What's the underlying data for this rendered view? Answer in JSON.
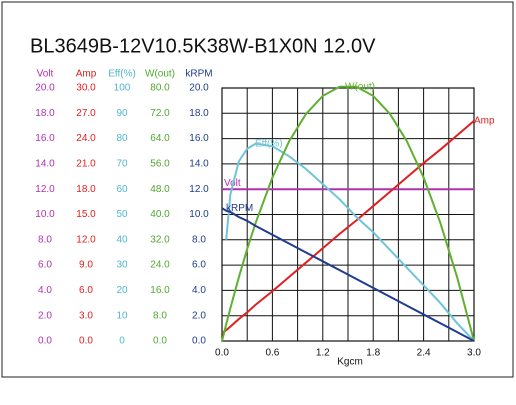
{
  "chart_data": {
    "type": "line",
    "title": "BL3649B-12V10.5K38W-B1X0N  12.0V",
    "xlabel": "Kgcm",
    "x": [
      0,
      0.05,
      0.1,
      0.2,
      0.3,
      0.4,
      0.6,
      0.8,
      1.0,
      1.2,
      1.4,
      1.6,
      1.8,
      2.0,
      2.2,
      2.4,
      2.6,
      2.8,
      3.0
    ],
    "xlim": [
      0,
      3
    ],
    "xticks": [
      {
        "value": 0,
        "label": "0.0"
      },
      {
        "value": 0.6,
        "label": "0.6"
      },
      {
        "value": 1.2,
        "label": "1.2"
      },
      {
        "value": 1.8,
        "label": "1.8"
      },
      {
        "value": 2.4,
        "label": "2.4"
      },
      {
        "value": 3.0,
        "label": "3.0"
      }
    ],
    "xminor": [
      0.3,
      0.9,
      1.5,
      2.1,
      2.7
    ],
    "grid": true,
    "axes": [
      {
        "name": "Volt",
        "color": "#b030b0",
        "ylim": [
          0,
          20
        ],
        "yticks": [
          {
            "value": 0,
            "label": "0.0"
          },
          {
            "value": 2,
            "label": "2.0"
          },
          {
            "value": 4,
            "label": "4.0"
          },
          {
            "value": 6,
            "label": "6.0"
          },
          {
            "value": 8,
            "label": "8.0"
          },
          {
            "value": 10,
            "label": "10.0"
          },
          {
            "value": 12,
            "label": "12.0"
          },
          {
            "value": 14,
            "label": "14.0"
          },
          {
            "value": 16,
            "label": "16.0"
          },
          {
            "value": 18,
            "label": "18.0"
          },
          {
            "value": 20,
            "label": "20.0"
          }
        ]
      },
      {
        "name": "Amp",
        "color": "#e02020",
        "ylim": [
          0,
          30
        ],
        "yticks": [
          {
            "value": 0,
            "label": "0.0"
          },
          {
            "value": 3,
            "label": "3.0"
          },
          {
            "value": 6,
            "label": "6.0"
          },
          {
            "value": 9,
            "label": "9.0"
          },
          {
            "value": 12,
            "label": "12.0"
          },
          {
            "value": 15,
            "label": "15.0"
          },
          {
            "value": 18,
            "label": "18.0"
          },
          {
            "value": 21,
            "label": "21.0"
          },
          {
            "value": 24,
            "label": "24.0"
          },
          {
            "value": 27,
            "label": "27.0"
          },
          {
            "value": 30,
            "label": "30.0"
          }
        ]
      },
      {
        "name": "Eff(%)",
        "color": "#50b8d0",
        "ylim": [
          0,
          100
        ],
        "yticks": [
          0,
          10,
          20,
          30,
          40,
          50,
          60,
          70,
          80,
          90,
          100
        ]
      },
      {
        "name": "W(out)",
        "color": "#50a830",
        "ylim": [
          0,
          80
        ],
        "yticks": [
          {
            "value": 0,
            "label": "0.0"
          },
          {
            "value": 8,
            "label": "8.0"
          },
          {
            "value": 16,
            "label": "16.0"
          },
          {
            "value": 24,
            "label": "24.0"
          },
          {
            "value": 32,
            "label": "32.0"
          },
          {
            "value": 40,
            "label": "40.0"
          },
          {
            "value": 48,
            "label": "48.0"
          },
          {
            "value": 56,
            "label": "56.0"
          },
          {
            "value": 64,
            "label": "64.0"
          },
          {
            "value": 72,
            "label": "72.0"
          },
          {
            "value": 80,
            "label": "80.0"
          }
        ]
      },
      {
        "name": "kRPM",
        "color": "#203c90",
        "ylim": [
          0,
          20
        ],
        "yticks": [
          {
            "value": 0,
            "label": "0.0"
          },
          {
            "value": 2,
            "label": "2.0"
          },
          {
            "value": 4,
            "label": "4.0"
          },
          {
            "value": 6,
            "label": "6.0"
          },
          {
            "value": 8,
            "label": "8.0"
          },
          {
            "value": 10,
            "label": "10.0"
          },
          {
            "value": 12,
            "label": "12.0"
          },
          {
            "value": 14,
            "label": "14.0"
          },
          {
            "value": 16,
            "label": "16.0"
          },
          {
            "value": 18,
            "label": "18.0"
          },
          {
            "value": 20,
            "label": "20.0"
          }
        ]
      }
    ],
    "series": [
      {
        "name": "Volt",
        "axis": 0,
        "color": "#b030b0",
        "values": [
          12,
          12,
          12,
          12,
          12,
          12,
          12,
          12,
          12,
          12,
          12,
          12,
          12,
          12,
          12,
          12,
          12,
          12,
          12
        ]
      },
      {
        "name": "Amp",
        "axis": 1,
        "color": "#e02020",
        "values": [
          0.9,
          1.3,
          1.7,
          2.6,
          3.4,
          4.3,
          5.9,
          7.6,
          9.3,
          11.0,
          12.7,
          14.3,
          16.0,
          17.7,
          19.4,
          21.1,
          22.7,
          24.4,
          26.1
        ]
      },
      {
        "name": "Eff(%)",
        "axis": 2,
        "color": "#70c4d8",
        "values": [
          null,
          40,
          58,
          71,
          76,
          78,
          77,
          73,
          68,
          62,
          56,
          49,
          43,
          36,
          29,
          22,
          15,
          7,
          0
        ]
      },
      {
        "name": "W(out)",
        "axis": 3,
        "color": "#60b030",
        "values": [
          0,
          5.3,
          10.4,
          20.1,
          29.1,
          37.3,
          51.7,
          63.2,
          71.8,
          77.5,
          80.4,
          80.4,
          77.5,
          71.8,
          63.2,
          51.7,
          37.3,
          20.1,
          0
        ]
      },
      {
        "name": "kRPM",
        "axis": 4,
        "color": "#203c90",
        "values": [
          10.5,
          10.3,
          10.2,
          9.8,
          9.5,
          9.1,
          8.4,
          7.7,
          7.0,
          6.3,
          5.6,
          4.9,
          4.2,
          3.5,
          2.8,
          2.1,
          1.4,
          0.7,
          0
        ]
      }
    ]
  }
}
